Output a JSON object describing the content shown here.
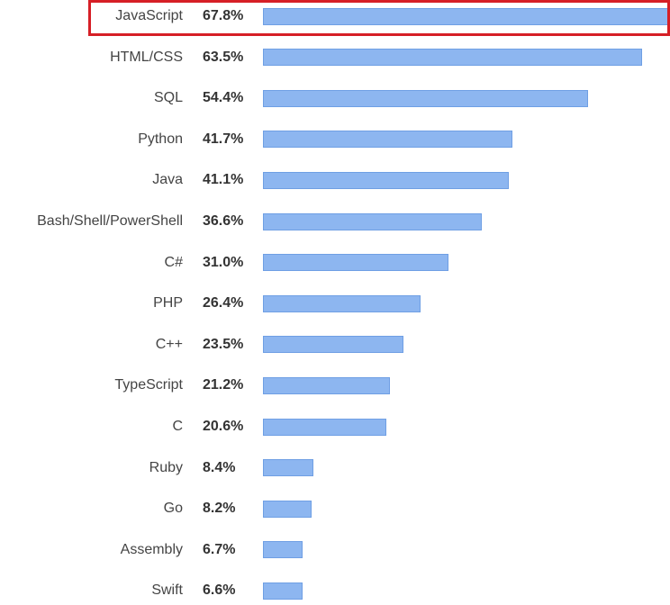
{
  "chart_data": {
    "type": "bar",
    "orientation": "horizontal",
    "categories": [
      "JavaScript",
      "HTML/CSS",
      "SQL",
      "Python",
      "Java",
      "Bash/Shell/PowerShell",
      "C#",
      "PHP",
      "C++",
      "TypeScript",
      "C",
      "Ruby",
      "Go",
      "Assembly",
      "Swift"
    ],
    "values": [
      67.8,
      63.5,
      54.4,
      41.7,
      41.1,
      36.6,
      31.0,
      26.4,
      23.5,
      21.2,
      20.6,
      8.4,
      8.2,
      6.7,
      6.6
    ],
    "value_labels": [
      "67.8%",
      "63.5%",
      "54.4%",
      "41.7%",
      "41.1%",
      "36.6%",
      "31.0%",
      "26.4%",
      "23.5%",
      "21.2%",
      "20.6%",
      "8.4%",
      "8.2%",
      "6.7%",
      "6.6%"
    ],
    "highlighted_category": "JavaScript",
    "colors": {
      "bar_fill": "#8db6f0",
      "bar_border": "#6f9fe4",
      "highlight_border": "#d61f26"
    }
  }
}
